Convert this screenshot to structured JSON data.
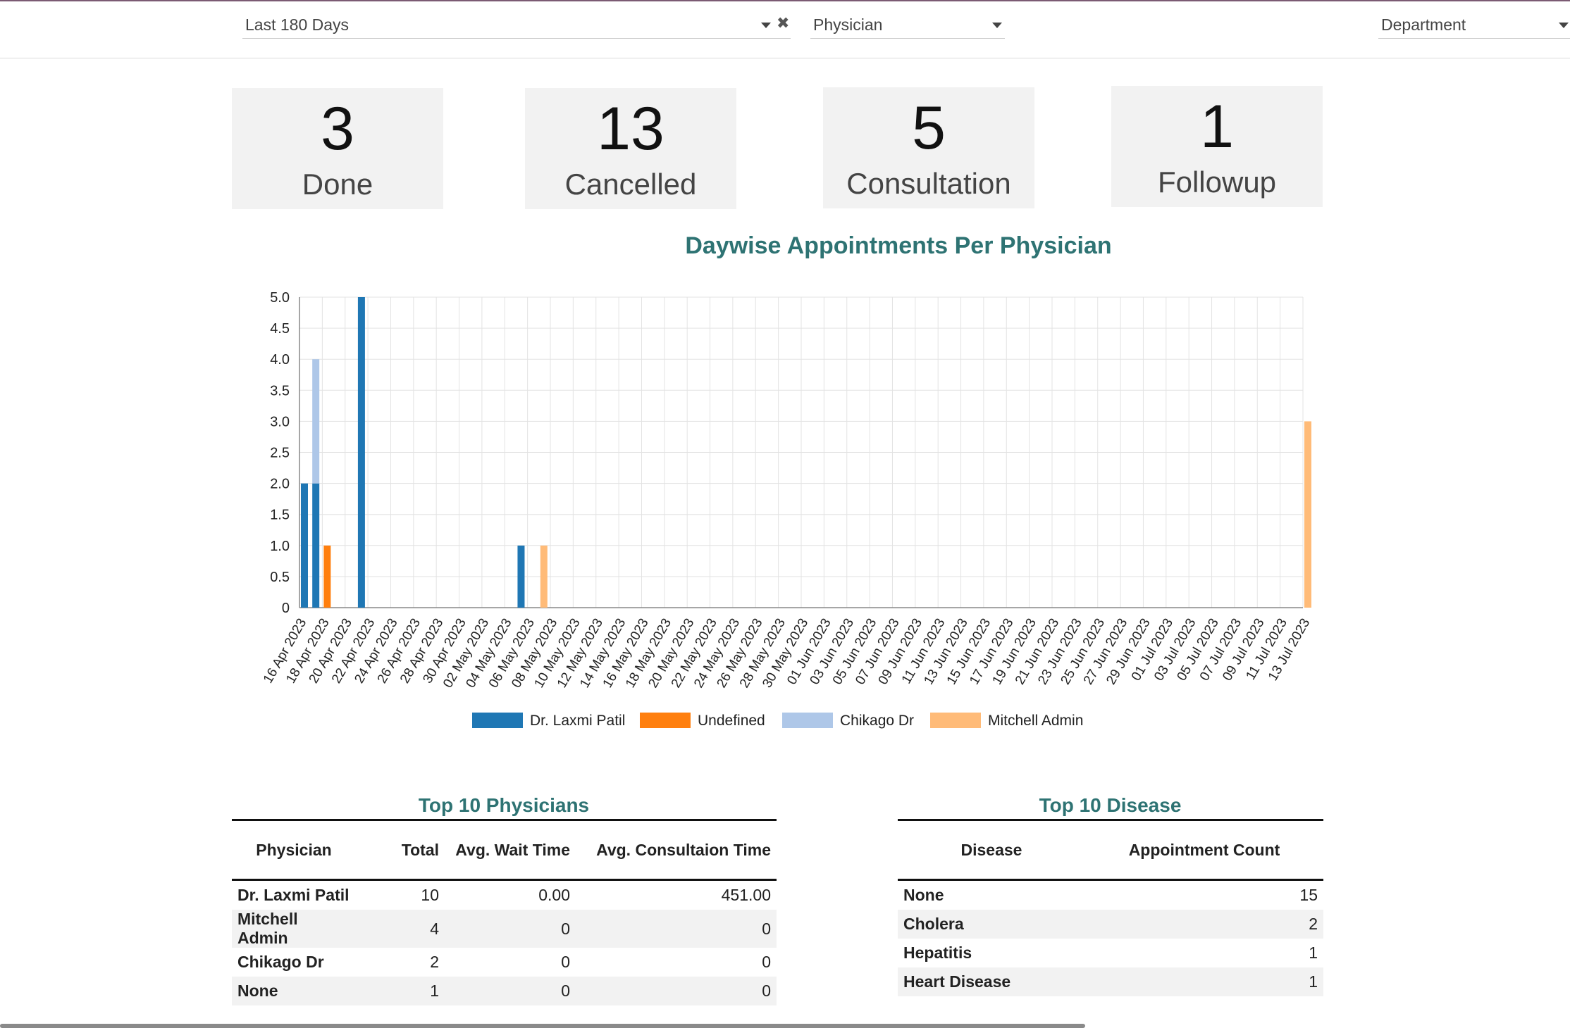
{
  "filters": {
    "period": "Last 180 Days",
    "physician_placeholder": "Physician",
    "department_placeholder": "Department"
  },
  "kpis": [
    {
      "value": "3",
      "label": "Done"
    },
    {
      "value": "13",
      "label": "Cancelled"
    },
    {
      "value": "5",
      "label": "Consultation"
    },
    {
      "value": "1",
      "label": "Followup"
    }
  ],
  "chart_data": {
    "type": "bar",
    "title": "Daywise Appointments Per Physician",
    "stacked": true,
    "ylim": [
      0,
      5
    ],
    "yticks": [
      "0",
      "0.5",
      "1.0",
      "1.5",
      "2.0",
      "2.5",
      "3.0",
      "3.5",
      "4.0",
      "4.5",
      "5.0"
    ],
    "grid": true,
    "legend_position": "bottom",
    "categories": [
      "16 Apr 2023",
      "17 Apr 2023",
      "18 Apr 2023",
      "19 Apr 2023",
      "20 Apr 2023",
      "21 Apr 2023",
      "22 Apr 2023",
      "23 Apr 2023",
      "24 Apr 2023",
      "25 Apr 2023",
      "26 Apr 2023",
      "27 Apr 2023",
      "28 Apr 2023",
      "29 Apr 2023",
      "30 Apr 2023",
      "01 May 2023",
      "02 May 2023",
      "03 May 2023",
      "04 May 2023",
      "05 May 2023",
      "06 May 2023",
      "07 May 2023",
      "08 May 2023",
      "09 May 2023",
      "10 May 2023",
      "11 May 2023",
      "12 May 2023",
      "13 May 2023",
      "14 May 2023",
      "15 May 2023",
      "16 May 2023",
      "17 May 2023",
      "18 May 2023",
      "19 May 2023",
      "20 May 2023",
      "21 May 2023",
      "22 May 2023",
      "23 May 2023",
      "24 May 2023",
      "25 May 2023",
      "26 May 2023",
      "27 May 2023",
      "28 May 2023",
      "29 May 2023",
      "30 May 2023",
      "31 May 2023",
      "01 Jun 2023",
      "02 Jun 2023",
      "03 Jun 2023",
      "04 Jun 2023",
      "05 Jun 2023",
      "06 Jun 2023",
      "07 Jun 2023",
      "08 Jun 2023",
      "09 Jun 2023",
      "10 Jun 2023",
      "11 Jun 2023",
      "12 Jun 2023",
      "13 Jun 2023",
      "14 Jun 2023",
      "15 Jun 2023",
      "16 Jun 2023",
      "17 Jun 2023",
      "18 Jun 2023",
      "19 Jun 2023",
      "20 Jun 2023",
      "21 Jun 2023",
      "22 Jun 2023",
      "23 Jun 2023",
      "24 Jun 2023",
      "25 Jun 2023",
      "26 Jun 2023",
      "27 Jun 2023",
      "28 Jun 2023",
      "29 Jun 2023",
      "30 Jun 2023",
      "01 Jul 2023",
      "02 Jul 2023",
      "03 Jul 2023",
      "04 Jul 2023",
      "05 Jul 2023",
      "06 Jul 2023",
      "07 Jul 2023",
      "08 Jul 2023",
      "09 Jul 2023",
      "10 Jul 2023",
      "11 Jul 2023",
      "12 Jul 2023",
      "13 Jul 2023"
    ],
    "xtick_labels": [
      "16 Apr 2023",
      "18 Apr 2023",
      "20 Apr 2023",
      "22 Apr 2023",
      "24 Apr 2023",
      "26 Apr 2023",
      "28 Apr 2023",
      "30 Apr 2023",
      "02 May 2023",
      "04 May 2023",
      "06 May 2023",
      "08 May 2023",
      "10 May 2023",
      "12 May 2023",
      "14 May 2023",
      "16 May 2023",
      "18 May 2023",
      "20 May 2023",
      "22 May 2023",
      "24 May 2023",
      "26 May 2023",
      "28 May 2023",
      "30 May 2023",
      "01 Jun 2023",
      "03 Jun 2023",
      "05 Jun 2023",
      "07 Jun 2023",
      "09 Jun 2023",
      "11 Jun 2023",
      "13 Jun 2023",
      "15 Jun 2023",
      "17 Jun 2023",
      "19 Jun 2023",
      "21 Jun 2023",
      "23 Jun 2023",
      "25 Jun 2023",
      "27 Jun 2023",
      "29 Jun 2023",
      "01 Jul 2023",
      "03 Jul 2023",
      "05 Jul 2023",
      "07 Jul 2023",
      "09 Jul 2023",
      "11 Jul 2023",
      "13 Jul 2023"
    ],
    "series": [
      {
        "name": "Dr. Laxmi Patil",
        "color": "#1f77b4",
        "points": [
          [
            "16 Apr 2023",
            2
          ],
          [
            "17 Apr 2023",
            2
          ],
          [
            "21 Apr 2023",
            5
          ],
          [
            "05 May 2023",
            1
          ]
        ]
      },
      {
        "name": "Undefined",
        "color": "#ff7f0e",
        "points": [
          [
            "18 Apr 2023",
            1
          ]
        ]
      },
      {
        "name": "Chikago Dr",
        "color": "#aec7e8",
        "points": [
          [
            "17 Apr 2023",
            2
          ]
        ]
      },
      {
        "name": "Mitchell Admin",
        "color": "#ffbb78",
        "points": [
          [
            "07 May 2023",
            1
          ],
          [
            "13 Jul 2023",
            3
          ]
        ]
      }
    ]
  },
  "physicians_table": {
    "title": "Top 10 Physicians",
    "headers": [
      "Physician",
      "Total",
      "Avg. Wait Time",
      "Avg. Consultaion Time"
    ],
    "rows": [
      [
        "Dr. Laxmi Patil",
        "10",
        "0.00",
        "451.00"
      ],
      [
        "Mitchell Admin",
        "4",
        "0",
        "0"
      ],
      [
        "Chikago Dr",
        "2",
        "0",
        "0"
      ],
      [
        "None",
        "1",
        "0",
        "0"
      ]
    ]
  },
  "disease_table": {
    "title": "Top 10 Disease",
    "headers": [
      "Disease",
      "Appointment Count"
    ],
    "rows": [
      [
        "None",
        "15"
      ],
      [
        "Cholera",
        "2"
      ],
      [
        "Hepatitis",
        "1"
      ],
      [
        "Heart Disease",
        "1"
      ]
    ]
  }
}
